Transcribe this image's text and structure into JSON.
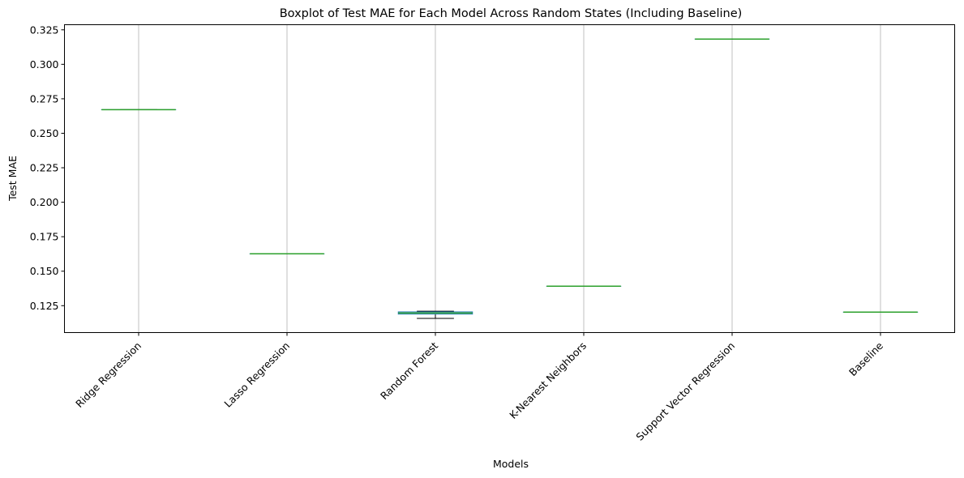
{
  "chart_data": {
    "type": "box",
    "title": "Boxplot of Test MAE for Each Model Across Random States (Including Baseline)",
    "xlabel": "Models",
    "ylabel": "Test MAE",
    "ylim": [
      0.1055,
      0.3287
    ],
    "yticks": [
      0.125,
      0.15,
      0.175,
      0.2,
      0.225,
      0.25,
      0.275,
      0.3,
      0.325
    ],
    "ytick_labels": [
      "0.125",
      "0.150",
      "0.175",
      "0.200",
      "0.225",
      "0.250",
      "0.275",
      "0.300",
      "0.325"
    ],
    "x_grid": true,
    "categories": [
      "Ridge Regression",
      "Lasso Regression",
      "Random Forest",
      "K-Nearest Neighbors",
      "Support Vector Regression",
      "Baseline"
    ],
    "boxes": [
      {
        "name": "Ridge Regression",
        "whislo": 0.2671,
        "q1": 0.2671,
        "med": 0.2671,
        "q3": 0.2671,
        "whishi": 0.2671
      },
      {
        "name": "Lasso Regression",
        "whislo": 0.1626,
        "q1": 0.1626,
        "med": 0.1626,
        "q3": 0.1626,
        "whishi": 0.1626
      },
      {
        "name": "Random Forest",
        "whislo": 0.1158,
        "q1": 0.1189,
        "med": 0.1197,
        "q3": 0.1205,
        "whishi": 0.121
      },
      {
        "name": "K-Nearest Neighbors",
        "whislo": 0.1391,
        "q1": 0.1391,
        "med": 0.1391,
        "q3": 0.1391,
        "whishi": 0.1391
      },
      {
        "name": "Support Vector Regression",
        "whislo": 0.3183,
        "q1": 0.3183,
        "med": 0.3183,
        "q3": 0.3183,
        "whishi": 0.3183
      },
      {
        "name": "Baseline",
        "whislo": 0.1203,
        "q1": 0.1203,
        "med": 0.1203,
        "q3": 0.1203,
        "whishi": 0.1203
      }
    ],
    "colors": {
      "box": "#1f77b4",
      "median": "#2ca02c",
      "whisker": "#000000",
      "grid": "#b0b0b0",
      "axis": "#000000"
    }
  }
}
